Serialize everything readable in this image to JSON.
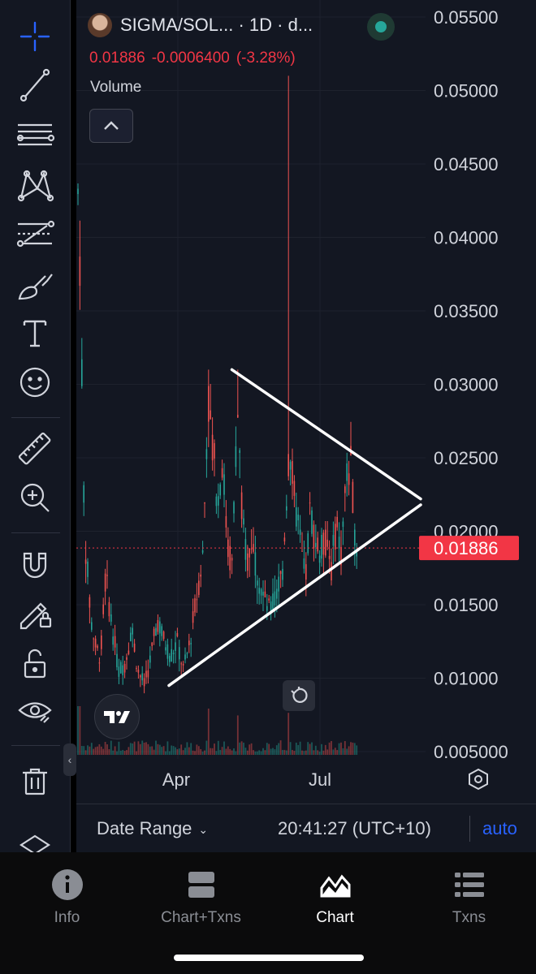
{
  "header": {
    "title": "SIGMA/SOL... · 1D · d...",
    "price": "0.01886",
    "change": "-0.0006400",
    "change_pct": "(-3.28%)",
    "volume_label": "Volume",
    "status_color": "#26a69a"
  },
  "price_axis": {
    "labels": [
      "0.05500",
      "0.05000",
      "0.04500",
      "0.04000",
      "0.03500",
      "0.03000",
      "0.02500",
      "0.02000",
      "0.01500",
      "0.01000",
      "0.005000"
    ],
    "current_price_label": "0.01886",
    "current_price_color": "#f23645"
  },
  "time_axis": {
    "labels": [
      "Apr",
      "Jul"
    ]
  },
  "chart_data": {
    "type": "candlestick",
    "symbol": "SIGMA/SOL",
    "interval": "1D",
    "ylim": [
      0.005,
      0.055
    ],
    "current_price": 0.01886,
    "trend_lines": [
      {
        "from": [
          0.0,
          0.0095
        ],
        "to": [
          1.0,
          0.0218
        ]
      },
      {
        "from": [
          0.25,
          0.031
        ],
        "to": [
          1.0,
          0.0222
        ]
      }
    ],
    "shape_color": "#ffffff",
    "up_color": "#26a69a",
    "down_color": "#ef5350"
  },
  "toolbar": {
    "tools": [
      "crosshair",
      "trend-line",
      "horizontal-lines",
      "pattern",
      "fib-levels",
      "brush",
      "text",
      "emoji",
      "ruler",
      "zoom-in",
      "magnet",
      "lock-drawing",
      "unlock",
      "eye",
      "trash",
      "layers"
    ]
  },
  "footer": {
    "date_range_label": "Date Range",
    "time": "20:41:27 (UTC+10)",
    "auto_label": "auto"
  },
  "nav": {
    "items": [
      {
        "label": "Info",
        "icon": "info-icon"
      },
      {
        "label": "Chart+Txns",
        "icon": "split-view-icon"
      },
      {
        "label": "Chart",
        "icon": "chart-icon"
      },
      {
        "label": "Txns",
        "icon": "list-icon"
      }
    ],
    "active": "Chart"
  }
}
